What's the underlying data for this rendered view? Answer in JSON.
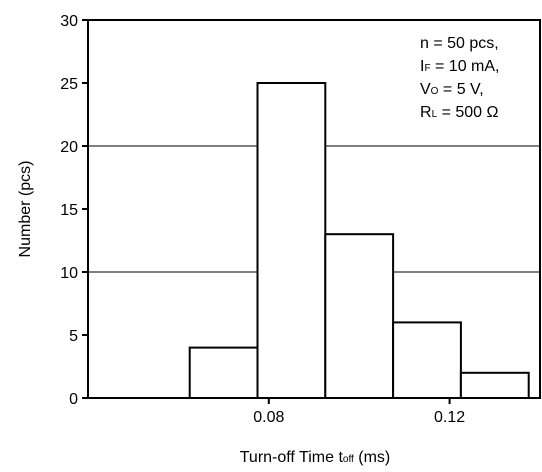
{
  "chart_data": {
    "type": "bar",
    "subtype": "histogram",
    "title": "",
    "xlabel": "Turn-off Time",
    "xlabel_symbol": "t",
    "xlabel_symbol_sub": "off",
    "xlabel_unit": "(ms)",
    "ylabel": "Number",
    "ylabel_unit": "(pcs)",
    "xlim": [
      0.04,
      0.14
    ],
    "ylim": [
      0,
      30
    ],
    "yticks": [
      0,
      5,
      10,
      15,
      20,
      25,
      30
    ],
    "xticks": [
      0.08,
      0.12
    ],
    "xtick_labels": [
      "0.08",
      "0.12"
    ],
    "gridlines_y": [
      10,
      20
    ],
    "bin_width": 0.015,
    "bins": [
      {
        "x_start": 0.0625,
        "x_end": 0.0775,
        "value": 4
      },
      {
        "x_start": 0.0775,
        "x_end": 0.0925,
        "value": 25
      },
      {
        "x_start": 0.0925,
        "x_end": 0.1075,
        "value": 13
      },
      {
        "x_start": 0.1075,
        "x_end": 0.1225,
        "value": 6
      },
      {
        "x_start": 0.1225,
        "x_end": 0.1375,
        "value": 2
      }
    ],
    "categories": [
      "0.070",
      "0.085",
      "0.100",
      "0.115",
      "0.130"
    ],
    "values": [
      4,
      25,
      13,
      6,
      2
    ],
    "annotation": {
      "placement": "top-right",
      "lines": [
        {
          "main": "n = 50 pcs,",
          "sym": "",
          "sub": "",
          "rest": ""
        },
        {
          "main": "",
          "sym": "I",
          "sub": "F",
          "rest": " = 10 mA,"
        },
        {
          "main": "",
          "sym": "V",
          "sub": "O",
          "rest": " = 5 V,"
        },
        {
          "main": "",
          "sym": "R",
          "sub": "L",
          "rest": " = 500 Ω"
        }
      ]
    },
    "grid": "horizontal-partial",
    "legend": "none"
  }
}
